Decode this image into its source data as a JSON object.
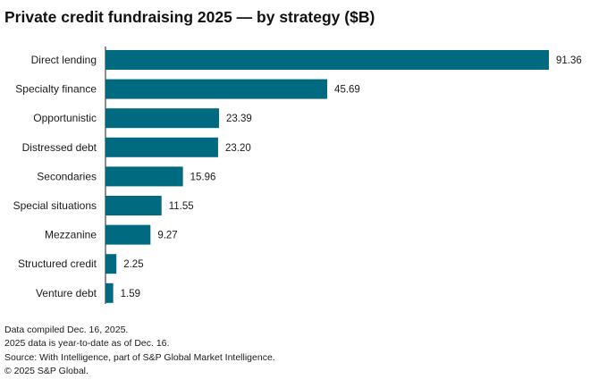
{
  "chart_data": {
    "type": "bar",
    "orientation": "horizontal",
    "title": "Private credit fundraising 2025 — by strategy ($B)",
    "categories": [
      "Direct lending",
      "Specialty finance",
      "Opportunistic",
      "Distressed debt",
      "Secondaries",
      "Special situations",
      "Mezzanine",
      "Structured credit",
      "Venture debt"
    ],
    "values": [
      91.36,
      45.69,
      23.39,
      23.2,
      15.96,
      11.55,
      9.27,
      2.25,
      1.59
    ],
    "value_labels": [
      "91.36",
      "45.69",
      "23.39",
      "23.20",
      "15.96",
      "11.55",
      "9.27",
      "2.25",
      "1.59"
    ],
    "xlim": [
      0,
      91.36
    ],
    "xlabel": "",
    "ylabel": "",
    "grid": false,
    "legend": "none",
    "bar_color": "#006b80"
  },
  "footnotes": [
    "Data compiled Dec. 16, 2025.",
    "2025 data is year-to-date as of Dec. 16.",
    "Source: With Intelligence, part of S&P Global Market Intelligence.",
    "© 2025 S&P Global."
  ]
}
